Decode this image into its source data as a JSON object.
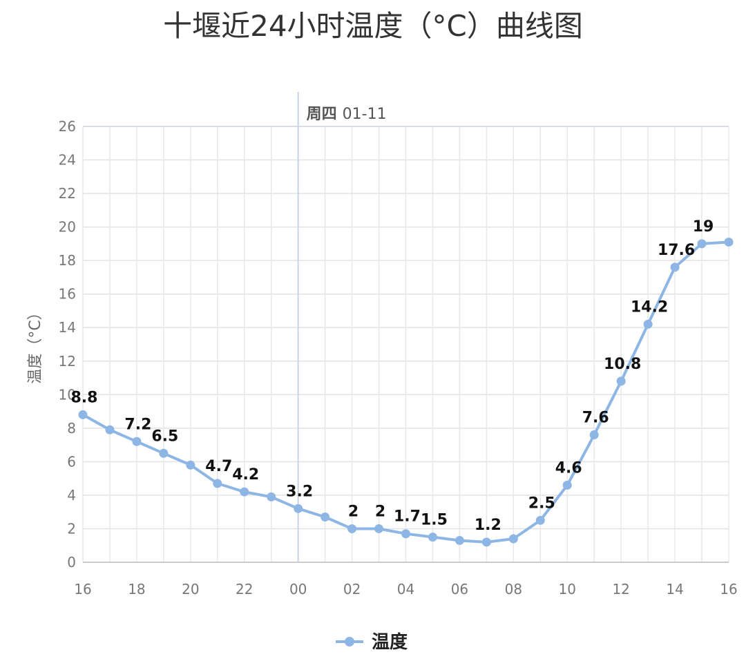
{
  "chart_data": {
    "type": "line",
    "title": "十堰近24小时温度（°C）曲线图",
    "ylabel": "温度（°C）",
    "xlabel": "",
    "ylim": [
      0,
      26
    ],
    "y_ticks": [
      "0",
      "2",
      "4",
      "6",
      "8",
      "10",
      "12",
      "14",
      "16",
      "18",
      "20",
      "22",
      "24",
      "26"
    ],
    "x_tick_labels": [
      "16",
      "18",
      "20",
      "22",
      "00",
      "02",
      "04",
      "06",
      "08",
      "10",
      "12",
      "14",
      "16"
    ],
    "day_marker": {
      "label": "周四",
      "date": "01-11",
      "after_hour": "00"
    },
    "grid": true,
    "legend_position": "bottom-center",
    "line_color": "#8db6e4",
    "series": [
      {
        "name": "温度",
        "x": [
          "16",
          "17",
          "18",
          "19",
          "20",
          "21",
          "22",
          "23",
          "00",
          "01",
          "02",
          "03",
          "04",
          "05",
          "06",
          "07",
          "08",
          "09",
          "10",
          "11",
          "12",
          "13",
          "14",
          "15",
          "16"
        ],
        "values": [
          8.8,
          7.9,
          7.2,
          6.5,
          5.8,
          4.7,
          4.2,
          3.9,
          3.2,
          2.7,
          2,
          2,
          1.7,
          1.5,
          1.3,
          1.2,
          1.4,
          2.5,
          4.6,
          7.6,
          10.8,
          14.2,
          17.6,
          19,
          19.1
        ],
        "labels": [
          "8.8",
          "",
          "7.2",
          "6.5",
          "",
          "4.7",
          "4.2",
          "",
          "3.2",
          "",
          "2",
          "2",
          "1.7",
          "1.5",
          "",
          "1.2",
          "",
          "2.5",
          "4.6",
          "7.6",
          "10.8",
          "14.2",
          "17.6",
          "19",
          ""
        ]
      }
    ]
  }
}
